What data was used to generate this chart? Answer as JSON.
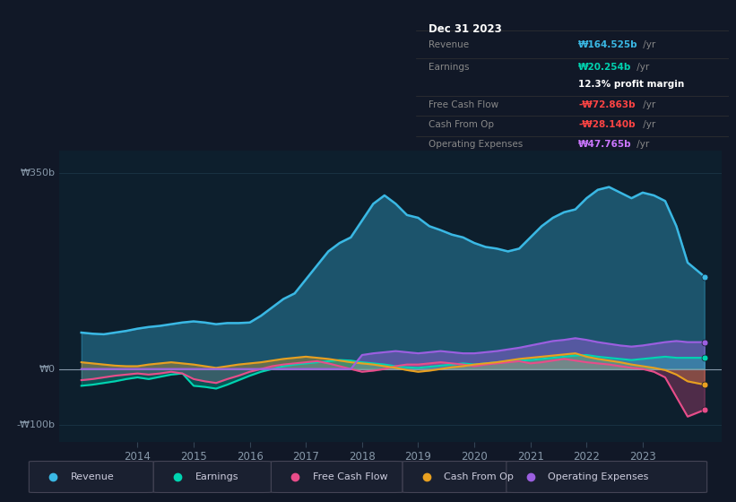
{
  "bg_color": "#111827",
  "chart_bg": "#0d1f2d",
  "zero_line_color": "#8899aa",
  "grid_color": "#1e3a4a",
  "y_label_top": "₩350b",
  "y_label_zero": "₩0",
  "y_label_neg": "-₩100b",
  "ylim": [
    -130,
    390
  ],
  "y_top_ref": 350,
  "y_zero_ref": 0,
  "y_neg_ref": -100,
  "xlim_start": 2012.6,
  "xlim_end": 2024.4,
  "x_ticks": [
    2014,
    2015,
    2016,
    2017,
    2018,
    2019,
    2020,
    2021,
    2022,
    2023
  ],
  "colors": {
    "revenue": "#3ab8e4",
    "earnings": "#00d4b1",
    "fcf": "#e84d8a",
    "cfop": "#e8a020",
    "opex": "#9b5fe0"
  },
  "legend_items": [
    {
      "label": "Revenue",
      "color": "#3ab8e4"
    },
    {
      "label": "Earnings",
      "color": "#00d4b1"
    },
    {
      "label": "Free Cash Flow",
      "color": "#e84d8a"
    },
    {
      "label": "Cash From Op",
      "color": "#e8a020"
    },
    {
      "label": "Operating Expenses",
      "color": "#9b5fe0"
    }
  ],
  "info_box": {
    "date": "Dec 31 2023",
    "rows": [
      {
        "label": "Revenue",
        "value": "₩164.525b /yr",
        "vcolor": "#3ab8e4",
        "separator_before": true
      },
      {
        "label": "Earnings",
        "value": "₩20.254b /yr",
        "vcolor": "#00d4b1",
        "separator_before": true
      },
      {
        "label": "",
        "value": "12.3% profit margin",
        "vcolor": "#ffffff",
        "separator_before": false
      },
      {
        "label": "Free Cash Flow",
        "value": "-₩72.863b /yr",
        "vcolor": "#ff4444",
        "separator_before": true
      },
      {
        "label": "Cash From Op",
        "value": "-₩28.140b /yr",
        "vcolor": "#ff4444",
        "separator_before": true
      },
      {
        "label": "Operating Expenses",
        "value": "₩47.765b /yr",
        "vcolor": "#cc77ff",
        "separator_before": true
      }
    ]
  },
  "series": {
    "x": [
      2013.0,
      2013.2,
      2013.4,
      2013.6,
      2013.8,
      2014.0,
      2014.2,
      2014.4,
      2014.6,
      2014.8,
      2015.0,
      2015.2,
      2015.4,
      2015.6,
      2015.8,
      2016.0,
      2016.2,
      2016.4,
      2016.6,
      2016.8,
      2017.0,
      2017.2,
      2017.4,
      2017.6,
      2017.8,
      2018.0,
      2018.2,
      2018.4,
      2018.6,
      2018.8,
      2019.0,
      2019.2,
      2019.4,
      2019.6,
      2019.8,
      2020.0,
      2020.2,
      2020.4,
      2020.6,
      2020.8,
      2021.0,
      2021.2,
      2021.4,
      2021.6,
      2021.8,
      2022.0,
      2022.2,
      2022.4,
      2022.6,
      2022.8,
      2023.0,
      2023.2,
      2023.4,
      2023.6,
      2023.8,
      2024.1
    ],
    "revenue": [
      65,
      63,
      62,
      65,
      68,
      72,
      75,
      77,
      80,
      83,
      85,
      83,
      80,
      82,
      82,
      83,
      95,
      110,
      125,
      135,
      160,
      185,
      210,
      225,
      235,
      265,
      295,
      310,
      295,
      275,
      270,
      255,
      248,
      240,
      235,
      225,
      218,
      215,
      210,
      215,
      235,
      255,
      270,
      280,
      285,
      305,
      320,
      325,
      315,
      305,
      315,
      310,
      300,
      255,
      190,
      165
    ],
    "earnings": [
      -30,
      -28,
      -25,
      -22,
      -18,
      -15,
      -18,
      -14,
      -10,
      -8,
      -30,
      -32,
      -35,
      -28,
      -20,
      -12,
      -5,
      0,
      5,
      8,
      10,
      12,
      14,
      16,
      15,
      12,
      10,
      8,
      5,
      3,
      2,
      4,
      6,
      8,
      10,
      8,
      10,
      12,
      14,
      15,
      16,
      18,
      20,
      22,
      24,
      25,
      22,
      20,
      18,
      16,
      18,
      20,
      22,
      20,
      20,
      20
    ],
    "free_cash_flow": [
      -20,
      -18,
      -15,
      -12,
      -10,
      -8,
      -10,
      -8,
      -5,
      -8,
      -18,
      -22,
      -25,
      -18,
      -12,
      -5,
      0,
      5,
      8,
      10,
      12,
      14,
      10,
      5,
      0,
      -5,
      -3,
      0,
      5,
      8,
      8,
      10,
      12,
      10,
      8,
      5,
      8,
      10,
      12,
      14,
      10,
      12,
      15,
      18,
      15,
      12,
      10,
      8,
      5,
      2,
      0,
      -5,
      -15,
      -50,
      -85,
      -73
    ],
    "cash_from_op": [
      12,
      10,
      8,
      6,
      5,
      5,
      8,
      10,
      12,
      10,
      8,
      5,
      2,
      5,
      8,
      10,
      12,
      15,
      18,
      20,
      22,
      20,
      18,
      15,
      12,
      10,
      8,
      5,
      2,
      -2,
      -5,
      -3,
      0,
      3,
      5,
      8,
      10,
      12,
      15,
      18,
      20,
      22,
      24,
      26,
      28,
      22,
      18,
      15,
      12,
      8,
      5,
      2,
      -2,
      -10,
      -22,
      -28
    ],
    "operating_expenses": [
      0,
      0,
      0,
      0,
      0,
      0,
      0,
      0,
      0,
      0,
      0,
      0,
      0,
      0,
      0,
      0,
      0,
      0,
      0,
      0,
      0,
      0,
      0,
      0,
      0,
      25,
      28,
      30,
      32,
      30,
      28,
      30,
      32,
      30,
      28,
      28,
      30,
      32,
      35,
      38,
      42,
      46,
      50,
      52,
      55,
      52,
      48,
      45,
      42,
      40,
      42,
      45,
      48,
      50,
      48,
      48
    ]
  }
}
